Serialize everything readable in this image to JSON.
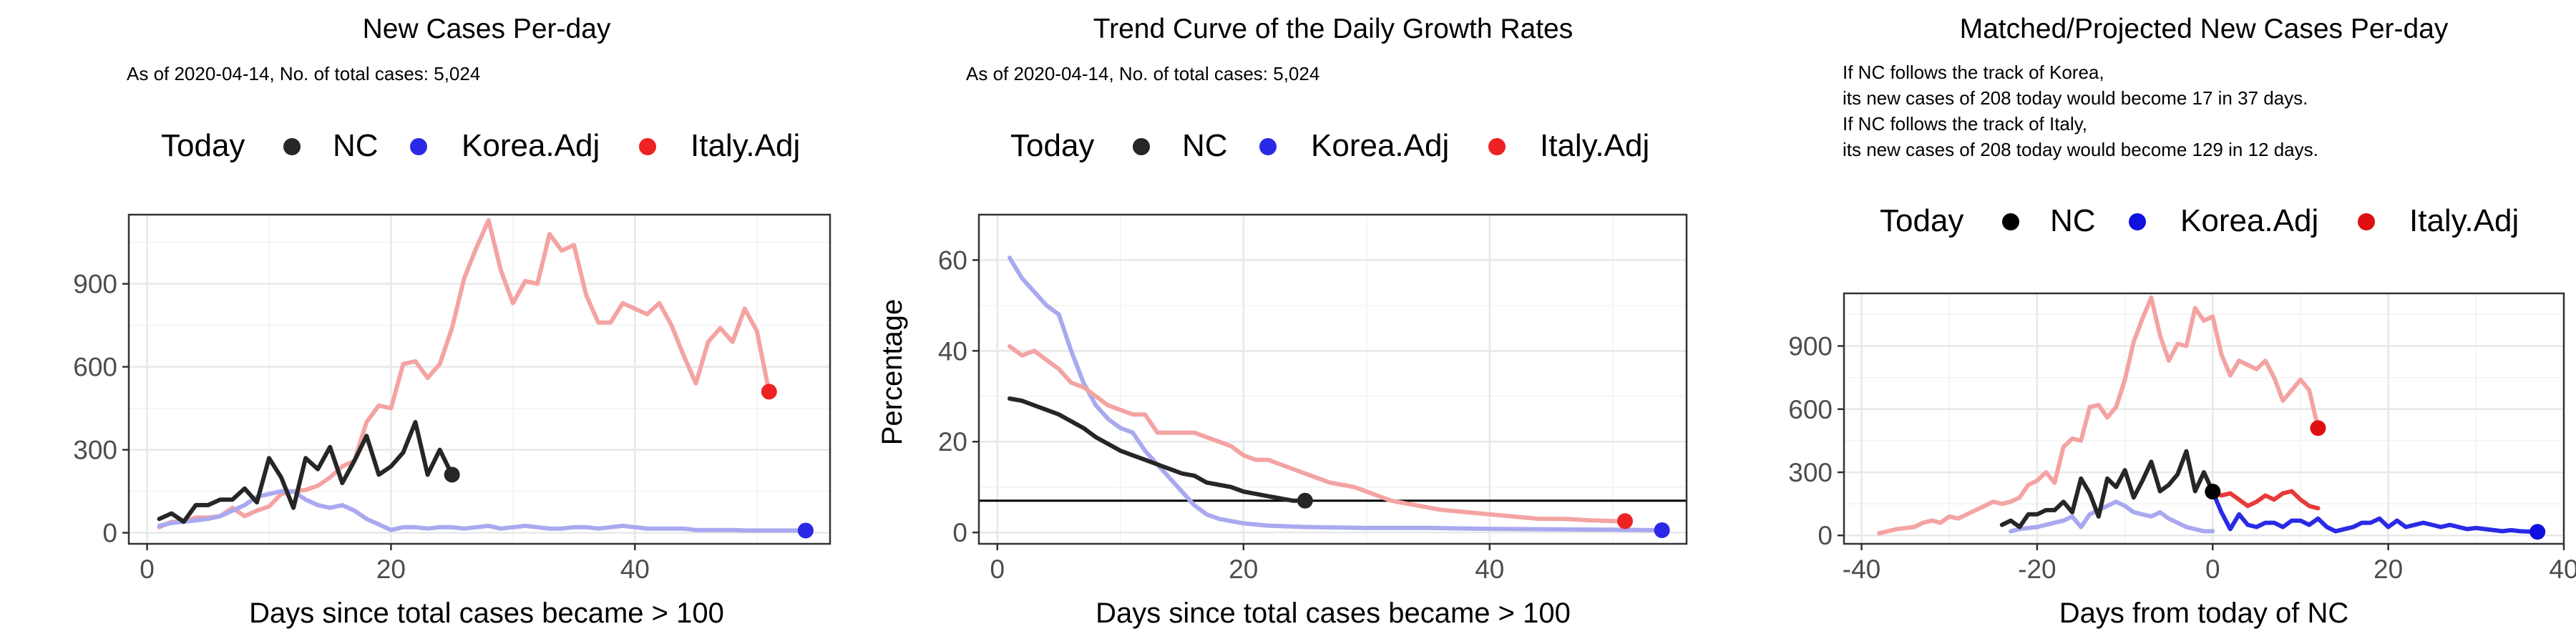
{
  "chart_data": [
    {
      "type": "line",
      "title": "New Cases Per-day",
      "subtitle_lines": [
        "As of 2020-04-14, No. of total cases: 5,024"
      ],
      "xlabel": "Days since total cases became > 100",
      "ylabel": "",
      "xlim": [
        -1.5,
        56
      ],
      "ylim": [
        -40,
        1150
      ],
      "xticks": [
        0,
        20,
        40
      ],
      "yticks": [
        0,
        300,
        600,
        900
      ],
      "grid": true,
      "legend": {
        "title": "Today",
        "entries": [
          "NC",
          "Korea.Adj",
          "Italy.Adj"
        ],
        "colors": [
          "#262626",
          "#2a2ae6",
          "#ee2222"
        ]
      },
      "series": [
        {
          "name": "Italy.Adj",
          "color": "#f4a3a3",
          "x": [
            1,
            2,
            3,
            4,
            5,
            6,
            7,
            8,
            9,
            10,
            11,
            12,
            13,
            14,
            15,
            16,
            17,
            18,
            19,
            20,
            21,
            22,
            23,
            24,
            25,
            26,
            27,
            28,
            29,
            30,
            31,
            32,
            33,
            34,
            35,
            36,
            37,
            38,
            39,
            40,
            41,
            42,
            43,
            44,
            45,
            46,
            47,
            48,
            49,
            50,
            51
          ],
          "y": [
            20,
            40,
            40,
            55,
            55,
            60,
            90,
            60,
            80,
            95,
            140,
            150,
            155,
            170,
            200,
            240,
            260,
            400,
            460,
            450,
            610,
            620,
            560,
            610,
            740,
            920,
            1030,
            1130,
            950,
            830,
            910,
            900,
            1080,
            1020,
            1040,
            860,
            760,
            760,
            830,
            810,
            790,
            830,
            750,
            640,
            540,
            690,
            740,
            690,
            810,
            730,
            510
          ],
          "marker_at_end": true,
          "marker_color": "#ee2222"
        },
        {
          "name": "Korea.Adj",
          "color": "#a9a9f0",
          "x": [
            1,
            2,
            3,
            4,
            5,
            6,
            7,
            8,
            9,
            10,
            11,
            12,
            13,
            14,
            15,
            16,
            17,
            18,
            19,
            20,
            21,
            22,
            23,
            24,
            25,
            26,
            27,
            28,
            29,
            30,
            31,
            32,
            33,
            34,
            35,
            36,
            37,
            38,
            39,
            40,
            41,
            42,
            43,
            44,
            45,
            46,
            47,
            48,
            49,
            50,
            51,
            52,
            53,
            54
          ],
          "y": [
            25,
            35,
            40,
            45,
            50,
            60,
            80,
            100,
            130,
            140,
            150,
            150,
            120,
            100,
            90,
            100,
            80,
            50,
            30,
            10,
            20,
            20,
            15,
            20,
            20,
            15,
            20,
            25,
            15,
            20,
            25,
            20,
            15,
            15,
            20,
            20,
            15,
            20,
            25,
            20,
            15,
            15,
            15,
            15,
            10,
            10,
            10,
            10,
            8,
            8,
            8,
            8,
            8,
            8
          ],
          "marker_at_end": true,
          "marker_color": "#2a2ae6"
        },
        {
          "name": "NC",
          "color": "#262626",
          "x": [
            1,
            2,
            3,
            4,
            5,
            6,
            7,
            8,
            9,
            10,
            11,
            12,
            13,
            14,
            15,
            16,
            17,
            18,
            19,
            20,
            21,
            22,
            23,
            24,
            25
          ],
          "y": [
            50,
            70,
            40,
            100,
            100,
            120,
            120,
            160,
            110,
            270,
            200,
            90,
            270,
            230,
            310,
            180,
            260,
            350,
            210,
            240,
            290,
            400,
            210,
            300,
            210
          ],
          "marker_at_end": true,
          "marker_color": "#262626"
        }
      ]
    },
    {
      "type": "line",
      "title": "Trend Curve of the Daily Growth Rates",
      "subtitle_lines": [
        "As of 2020-04-14, No. of total cases: 5,024"
      ],
      "xlabel": "Days since total cases became > 100",
      "ylabel": "Percentage",
      "xlim": [
        -1.5,
        56
      ],
      "ylim": [
        -2.5,
        70
      ],
      "xticks": [
        0,
        20,
        40
      ],
      "yticks": [
        0,
        20,
        40,
        60
      ],
      "grid": true,
      "reference_line_y": 7,
      "legend": {
        "title": "Today",
        "entries": [
          "NC",
          "Korea.Adj",
          "Italy.Adj"
        ],
        "colors": [
          "#262626",
          "#2a2ae6",
          "#ee2222"
        ]
      },
      "series": [
        {
          "name": "Korea.Adj",
          "color": "#a9a9f0",
          "x": [
            1,
            2,
            3,
            4,
            5,
            6,
            7,
            8,
            9,
            10,
            11,
            12,
            13,
            14,
            15,
            16,
            17,
            18,
            20,
            22,
            25,
            30,
            35,
            40,
            45,
            50,
            54
          ],
          "y": [
            60.5,
            56,
            53,
            50,
            48,
            40,
            33,
            28,
            25,
            23,
            22,
            18,
            15,
            12,
            9,
            6,
            4,
            3,
            2,
            1.5,
            1.2,
            1,
            1,
            0.8,
            0.7,
            0.6,
            0.5
          ],
          "marker_at_end": true,
          "marker_color": "#2a2ae6"
        },
        {
          "name": "Italy.Adj",
          "color": "#f4a3a3",
          "x": [
            1,
            2,
            3,
            4,
            5,
            6,
            7,
            8,
            9,
            10,
            11,
            12,
            13,
            14,
            15,
            16,
            17,
            18,
            19,
            20,
            21,
            22,
            23,
            24,
            25,
            26,
            27,
            28,
            29,
            30,
            31,
            32,
            33,
            34,
            35,
            36,
            38,
            40,
            42,
            44,
            46,
            48,
            50,
            51
          ],
          "y": [
            41,
            39,
            40,
            38,
            36,
            33,
            32,
            30,
            28,
            27,
            26,
            26,
            22,
            22,
            22,
            22,
            21,
            20,
            19,
            17,
            16,
            16,
            15,
            14,
            13,
            12,
            11,
            10.5,
            10,
            9,
            8,
            7,
            6.5,
            6,
            5.5,
            5,
            4.5,
            4,
            3.5,
            3,
            3,
            2.7,
            2.5,
            2.5
          ],
          "marker_at_end": true,
          "marker_color": "#ee2222"
        },
        {
          "name": "NC",
          "color": "#262626",
          "x": [
            1,
            2,
            3,
            4,
            5,
            6,
            7,
            8,
            9,
            10,
            11,
            12,
            13,
            14,
            15,
            16,
            17,
            18,
            19,
            20,
            21,
            22,
            23,
            24,
            25
          ],
          "y": [
            29.5,
            29,
            28,
            27,
            26,
            24.5,
            23,
            21,
            19.5,
            18,
            17,
            16,
            15,
            14,
            13,
            12.5,
            11,
            10.5,
            10,
            9,
            8.5,
            8,
            7.5,
            7,
            7
          ],
          "marker_at_end": true,
          "marker_color": "#262626"
        }
      ]
    },
    {
      "type": "line",
      "title": "Matched/Projected New Cases Per-day",
      "subtitle_lines": [
        "If NC follows the track of Korea,",
        "its new cases of 208 today would become 17 in 37 days.",
        "If NC follows the track of Italy,",
        "its new cases of 208 today would become 129 in 12 days."
      ],
      "xlabel": "Days from today of NC",
      "ylabel": "",
      "xlim": [
        -42,
        40
      ],
      "ylim": [
        -40,
        1150
      ],
      "xticks": [
        -40,
        -20,
        0,
        20,
        40
      ],
      "yticks": [
        0,
        300,
        600,
        900
      ],
      "grid": true,
      "legend": {
        "title": "Today",
        "entries": [
          "NC",
          "Korea.Adj",
          "Italy.Adj"
        ],
        "colors": [
          "#000000",
          "#1010e0",
          "#e01010"
        ]
      },
      "series": [
        {
          "name": "Italy.Adj (history)",
          "color": "#f4a3a3",
          "x": [
            -38,
            -36,
            -34,
            -33,
            -32,
            -31,
            -30,
            -29,
            -28,
            -27,
            -26,
            -25,
            -24,
            -23,
            -22,
            -21,
            -20,
            -19,
            -18,
            -17,
            -16,
            -15,
            -14,
            -13,
            -12,
            -11,
            -10,
            -9,
            -8,
            -7,
            -6,
            -5,
            -4,
            -3,
            -2,
            -1,
            0,
            1,
            2,
            3,
            4,
            5,
            6,
            7,
            8,
            9,
            10,
            11,
            12
          ],
          "y": [
            10,
            30,
            40,
            60,
            70,
            60,
            90,
            80,
            100,
            120,
            140,
            160,
            150,
            160,
            180,
            240,
            260,
            300,
            250,
            420,
            460,
            450,
            610,
            620,
            560,
            610,
            740,
            920,
            1030,
            1130,
            950,
            830,
            910,
            900,
            1080,
            1020,
            1040,
            860,
            760,
            830,
            810,
            790,
            830,
            750,
            640,
            690,
            740,
            690,
            510
          ],
          "marker_at_end": true,
          "marker_color": "#e01010"
        },
        {
          "name": "Italy.Adj (projected)",
          "color": "#e83a3a",
          "x": [
            0,
            1,
            2,
            3,
            4,
            5,
            6,
            7,
            8,
            9,
            10,
            11,
            12
          ],
          "y": [
            208,
            190,
            200,
            170,
            140,
            160,
            190,
            170,
            200,
            210,
            170,
            140,
            129
          ]
        },
        {
          "name": "Korea.Adj (history)",
          "color": "#a9a9f0",
          "x": [
            -23,
            -22,
            -21,
            -20,
            -19,
            -18,
            -17,
            -16,
            -15,
            -14,
            -13,
            -12,
            -11,
            -10,
            -9,
            -8,
            -7,
            -6,
            -5,
            -4,
            -3,
            -2,
            -1,
            0
          ],
          "y": [
            20,
            30,
            35,
            40,
            50,
            60,
            70,
            90,
            40,
            100,
            120,
            140,
            160,
            140,
            110,
            100,
            90,
            110,
            80,
            60,
            40,
            30,
            20,
            20
          ]
        },
        {
          "name": "Korea.Adj (projected)",
          "color": "#2a2ae6",
          "x": [
            0,
            1,
            2,
            3,
            4,
            5,
            6,
            7,
            8,
            9,
            10,
            11,
            12,
            13,
            14,
            15,
            16,
            17,
            18,
            19,
            20,
            21,
            22,
            23,
            24,
            25,
            26,
            27,
            28,
            29,
            30,
            31,
            32,
            33,
            34,
            35,
            36,
            37
          ],
          "y": [
            208,
            110,
            30,
            100,
            50,
            40,
            60,
            60,
            40,
            70,
            70,
            50,
            80,
            40,
            20,
            30,
            40,
            60,
            60,
            80,
            40,
            70,
            40,
            50,
            60,
            50,
            40,
            50,
            40,
            30,
            35,
            30,
            25,
            20,
            25,
            20,
            18,
            17
          ],
          "marker_at_end": true,
          "marker_color": "#1010e0"
        },
        {
          "name": "NC",
          "color": "#262626",
          "x": [
            -24,
            -23,
            -22,
            -21,
            -20,
            -19,
            -18,
            -17,
            -16,
            -15,
            -14,
            -13,
            -12,
            -11,
            -10,
            -9,
            -8,
            -7,
            -6,
            -5,
            -4,
            -3,
            -2,
            -1,
            0
          ],
          "y": [
            50,
            70,
            40,
            100,
            100,
            120,
            120,
            160,
            110,
            270,
            200,
            90,
            270,
            230,
            310,
            180,
            260,
            350,
            210,
            240,
            290,
            400,
            210,
            300,
            208
          ],
          "marker_at_end": true,
          "marker_color": "#000000"
        }
      ]
    }
  ]
}
